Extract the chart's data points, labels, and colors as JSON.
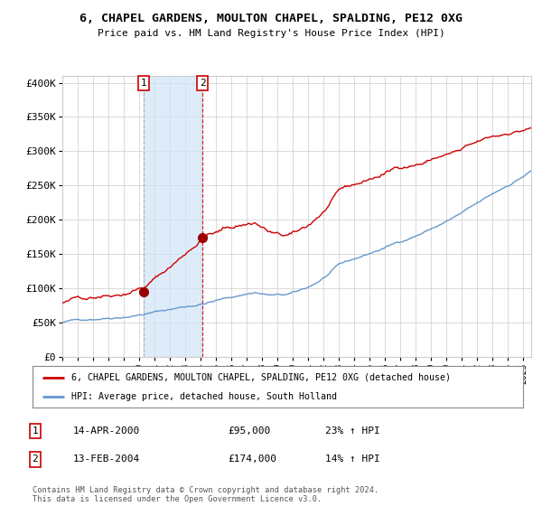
{
  "title": "6, CHAPEL GARDENS, MOULTON CHAPEL, SPALDING, PE12 0XG",
  "subtitle": "Price paid vs. HM Land Registry's House Price Index (HPI)",
  "ylim": [
    0,
    410000
  ],
  "xlim_start": 1995.0,
  "xlim_end": 2025.5,
  "red_line_color": "#cc0000",
  "blue_line_color": "#6699cc",
  "background_color": "#ffffff",
  "grid_color": "#cccccc",
  "transaction1": {
    "date": 2000.29,
    "price": 95000,
    "label": "14-APR-2000",
    "pct": "23%",
    "num": "1"
  },
  "transaction2": {
    "date": 2004.12,
    "price": 174000,
    "label": "13-FEB-2004",
    "pct": "14%",
    "num": "2"
  },
  "shade_color": "#d0e4f7",
  "legend_entry1": "6, CHAPEL GARDENS, MOULTON CHAPEL, SPALDING, PE12 0XG (detached house)",
  "legend_entry2": "HPI: Average price, detached house, South Holland",
  "footnote": "Contains HM Land Registry data © Crown copyright and database right 2024.\nThis data is licensed under the Open Government Licence v3.0.",
  "yticks": [
    0,
    50000,
    100000,
    150000,
    200000,
    250000,
    300000,
    350000,
    400000
  ],
  "ytick_labels": [
    "£0",
    "£50K",
    "£100K",
    "£150K",
    "£200K",
    "£250K",
    "£300K",
    "£350K",
    "£400K"
  ]
}
